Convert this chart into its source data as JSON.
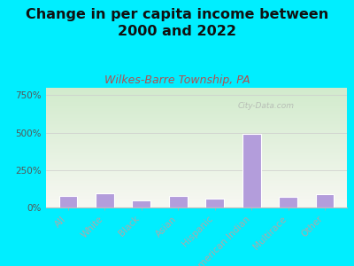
{
  "title": "Change in per capita income between\n2000 and 2022",
  "subtitle": "Wilkes-Barre Township, PA",
  "categories": [
    "All",
    "White",
    "Black",
    "Asian",
    "Hispanic",
    "American Indian",
    "Multirace",
    "Other"
  ],
  "values": [
    75,
    95,
    45,
    80,
    60,
    490,
    70,
    90
  ],
  "bar_color": "#b39ddb",
  "bar_edge_color": "white",
  "title_fontsize": 11.5,
  "subtitle_fontsize": 9,
  "subtitle_color": "#b05050",
  "title_color": "#111111",
  "bg_color": "#00eeff",
  "ylabel_ticks": [
    "0%",
    "250%",
    "500%",
    "750%"
  ],
  "ytick_values": [
    0,
    250,
    500,
    750
  ],
  "ylim": [
    0,
    800
  ],
  "watermark": "City-Data.com"
}
